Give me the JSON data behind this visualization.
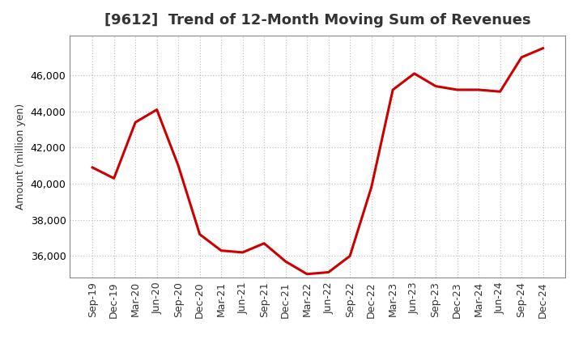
{
  "title": "[9612]  Trend of 12-Month Moving Sum of Revenues",
  "ylabel": "Amount (million yen)",
  "line_color": "#cc0000",
  "background_color": "#ffffff",
  "plot_bg_color": "#ffffff",
  "grid_color": "#bbbbbb",
  "labels": [
    "Sep-19",
    "Dec-19",
    "Mar-20",
    "Jun-20",
    "Sep-20",
    "Dec-20",
    "Mar-21",
    "Jun-21",
    "Sep-21",
    "Dec-21",
    "Mar-22",
    "Jun-22",
    "Sep-22",
    "Dec-22",
    "Mar-23",
    "Jun-23",
    "Sep-23",
    "Dec-23",
    "Mar-24",
    "Jun-24",
    "Sep-24",
    "Dec-24"
  ],
  "values": [
    40900,
    40300,
    43400,
    44100,
    41000,
    37200,
    36300,
    36200,
    36700,
    35700,
    35000,
    35100,
    36000,
    39800,
    45200,
    46100,
    45400,
    45200,
    45200,
    45100,
    47000,
    47500
  ],
  "ylim": [
    34800,
    48200
  ],
  "yticks": [
    36000,
    38000,
    40000,
    42000,
    44000,
    46000
  ],
  "title_fontsize": 13,
  "title_color": "#333333",
  "axis_label_fontsize": 9,
  "tick_fontsize": 9,
  "line_width": 2.2
}
